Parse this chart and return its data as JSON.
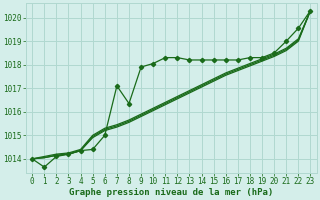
{
  "xlabel": "Graphe pression niveau de la mer (hPa)",
  "bg_color": "#d4eeea",
  "grid_color": "#b0d8d0",
  "line_color": "#1a6b1a",
  "xlim": [
    -0.5,
    23.5
  ],
  "ylim": [
    1013.4,
    1020.6
  ],
  "yticks": [
    1014,
    1015,
    1016,
    1017,
    1018,
    1019,
    1020
  ],
  "xticks": [
    0,
    1,
    2,
    3,
    4,
    5,
    6,
    7,
    8,
    9,
    10,
    11,
    12,
    13,
    14,
    15,
    16,
    17,
    18,
    19,
    20,
    21,
    22,
    23
  ],
  "series1_x": [
    0,
    1,
    2,
    3,
    4,
    5,
    6,
    7,
    8,
    9,
    10,
    11,
    12,
    13,
    14,
    15,
    16,
    17,
    18,
    19,
    20,
    21,
    22,
    23
  ],
  "series1_y": [
    1014.0,
    1013.65,
    1014.1,
    1014.2,
    1014.35,
    1014.4,
    1015.0,
    1017.1,
    1016.35,
    1017.9,
    1018.05,
    1018.3,
    1018.3,
    1018.2,
    1018.2,
    1018.2,
    1018.2,
    1018.2,
    1018.3,
    1018.3,
    1018.5,
    1019.0,
    1019.55,
    1020.3
  ],
  "series2_x": [
    0,
    1,
    2,
    3,
    4,
    5,
    6,
    7,
    8,
    9,
    10,
    11,
    12,
    13,
    14,
    15,
    16,
    17,
    18,
    19,
    20,
    21,
    22,
    23
  ],
  "series2_y": [
    1014.0,
    1014.05,
    1014.15,
    1014.2,
    1014.35,
    1014.9,
    1015.2,
    1015.35,
    1015.55,
    1015.8,
    1016.05,
    1016.3,
    1016.55,
    1016.8,
    1017.05,
    1017.3,
    1017.55,
    1017.75,
    1017.95,
    1018.15,
    1018.35,
    1018.6,
    1019.0,
    1020.3
  ],
  "series3_x": [
    0,
    1,
    2,
    3,
    4,
    5,
    6,
    7,
    8,
    9,
    10,
    11,
    12,
    13,
    14,
    15,
    16,
    17,
    18,
    19,
    20,
    21,
    22,
    23
  ],
  "series3_y": [
    1014.0,
    1014.05,
    1014.15,
    1014.2,
    1014.35,
    1014.95,
    1015.25,
    1015.4,
    1015.6,
    1015.85,
    1016.1,
    1016.35,
    1016.6,
    1016.85,
    1017.1,
    1017.35,
    1017.6,
    1017.8,
    1018.0,
    1018.2,
    1018.4,
    1018.65,
    1019.05,
    1020.3
  ],
  "series4_x": [
    0,
    1,
    2,
    3,
    4,
    5,
    6,
    7,
    8,
    9,
    10,
    11,
    12,
    13,
    14,
    15,
    16,
    17,
    18,
    19,
    20,
    21,
    22,
    23
  ],
  "series4_y": [
    1014.0,
    1014.1,
    1014.2,
    1014.25,
    1014.4,
    1015.0,
    1015.3,
    1015.45,
    1015.65,
    1015.9,
    1016.15,
    1016.4,
    1016.65,
    1016.9,
    1017.15,
    1017.4,
    1017.65,
    1017.85,
    1018.05,
    1018.25,
    1018.45,
    1018.7,
    1019.1,
    1020.3
  ],
  "tick_fontsize": 5.5,
  "label_fontsize": 6.5,
  "marker_size": 2.2,
  "line_width": 0.9
}
